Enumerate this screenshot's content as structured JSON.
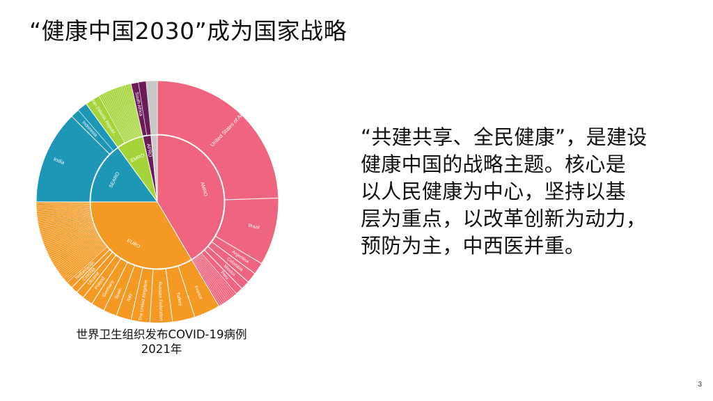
{
  "slide": {
    "title": "“健康中国2030”成为国家战略",
    "caption_line1": "世界卫生组织发布COVID-19病例",
    "caption_line2": "2021年",
    "body_lines": [
      "“共建共享、全民健康”，是建设",
      "健康中国的战略主题。核心是",
      "以人民健康为中心，坚持以基",
      "层为重点，以改革创新为动力，",
      "预防为主，中西医并重。"
    ],
    "page_number": "3"
  },
  "chart_data": {
    "type": "sunburst",
    "colors": {
      "AMRO": "#ef647e",
      "EURO": "#f49a24",
      "SEARO": "#1e97b6",
      "EMRO": "#a4d43a",
      "AFRO": "#6a1b58",
      "WPRO": "#c9c9c9"
    },
    "inner_ring": [
      {
        "label": "AMRO",
        "value": 41.5
      },
      {
        "label": "EURO",
        "value": 33.5
      },
      {
        "label": "SEARO",
        "value": 15
      },
      {
        "label": "EMRO",
        "value": 6.5
      },
      {
        "label": "AFRO",
        "value": 2
      },
      {
        "label": "",
        "value": 1.5
      }
    ],
    "outer_ring": [
      {
        "label": "United States of America",
        "region": "AMRO",
        "value": 24.5
      },
      {
        "label": "Brazil",
        "region": "AMRO",
        "value": 9
      },
      {
        "label": "Argentina",
        "region": "AMRO",
        "value": 1.6
      },
      {
        "label": "Colombia",
        "region": "AMRO",
        "value": 1.4
      },
      {
        "label": "Mexico",
        "region": "AMRO",
        "value": 1.2
      },
      {
        "label": "Peru",
        "region": "AMRO",
        "value": 1
      },
      {
        "label": "",
        "region": "AMRO",
        "value": 2.8
      },
      {
        "label": "France",
        "region": "EURO",
        "value": 3.5
      },
      {
        "label": "Turkey",
        "region": "EURO",
        "value": 3
      },
      {
        "label": "Russian Federation",
        "region": "EURO",
        "value": 3
      },
      {
        "label": "The United Kingdom",
        "region": "EURO",
        "value": 2.5
      },
      {
        "label": "Italy",
        "region": "EURO",
        "value": 2
      },
      {
        "label": "Spain",
        "region": "EURO",
        "value": 1.8
      },
      {
        "label": "Germany",
        "region": "EURO",
        "value": 1.8
      },
      {
        "label": "Poland",
        "region": "EURO",
        "value": 1.4
      },
      {
        "label": "Ukraine",
        "region": "EURO",
        "value": 1.1
      },
      {
        "label": "Czechia",
        "region": "EURO",
        "value": 0.9
      },
      {
        "label": "Netherlands",
        "region": "EURO",
        "value": 0.9
      },
      {
        "label": "",
        "region": "EURO",
        "value": 11.6
      },
      {
        "label": "India",
        "region": "SEARO",
        "value": 12.5
      },
      {
        "label": "Indonesia",
        "region": "SEARO",
        "value": 1.2
      },
      {
        "label": "",
        "region": "SEARO",
        "value": 1.3
      },
      {
        "label": "Iran (Islamic Republ...",
        "region": "EMRO",
        "value": 2
      },
      {
        "label": "",
        "region": "EMRO",
        "value": 4.5
      },
      {
        "label": "South Africa",
        "region": "AFRO",
        "value": 1
      },
      {
        "label": "",
        "region": "AFRO",
        "value": 1
      },
      {
        "label": "",
        "region": "WPRO",
        "value": 1.5
      }
    ]
  }
}
